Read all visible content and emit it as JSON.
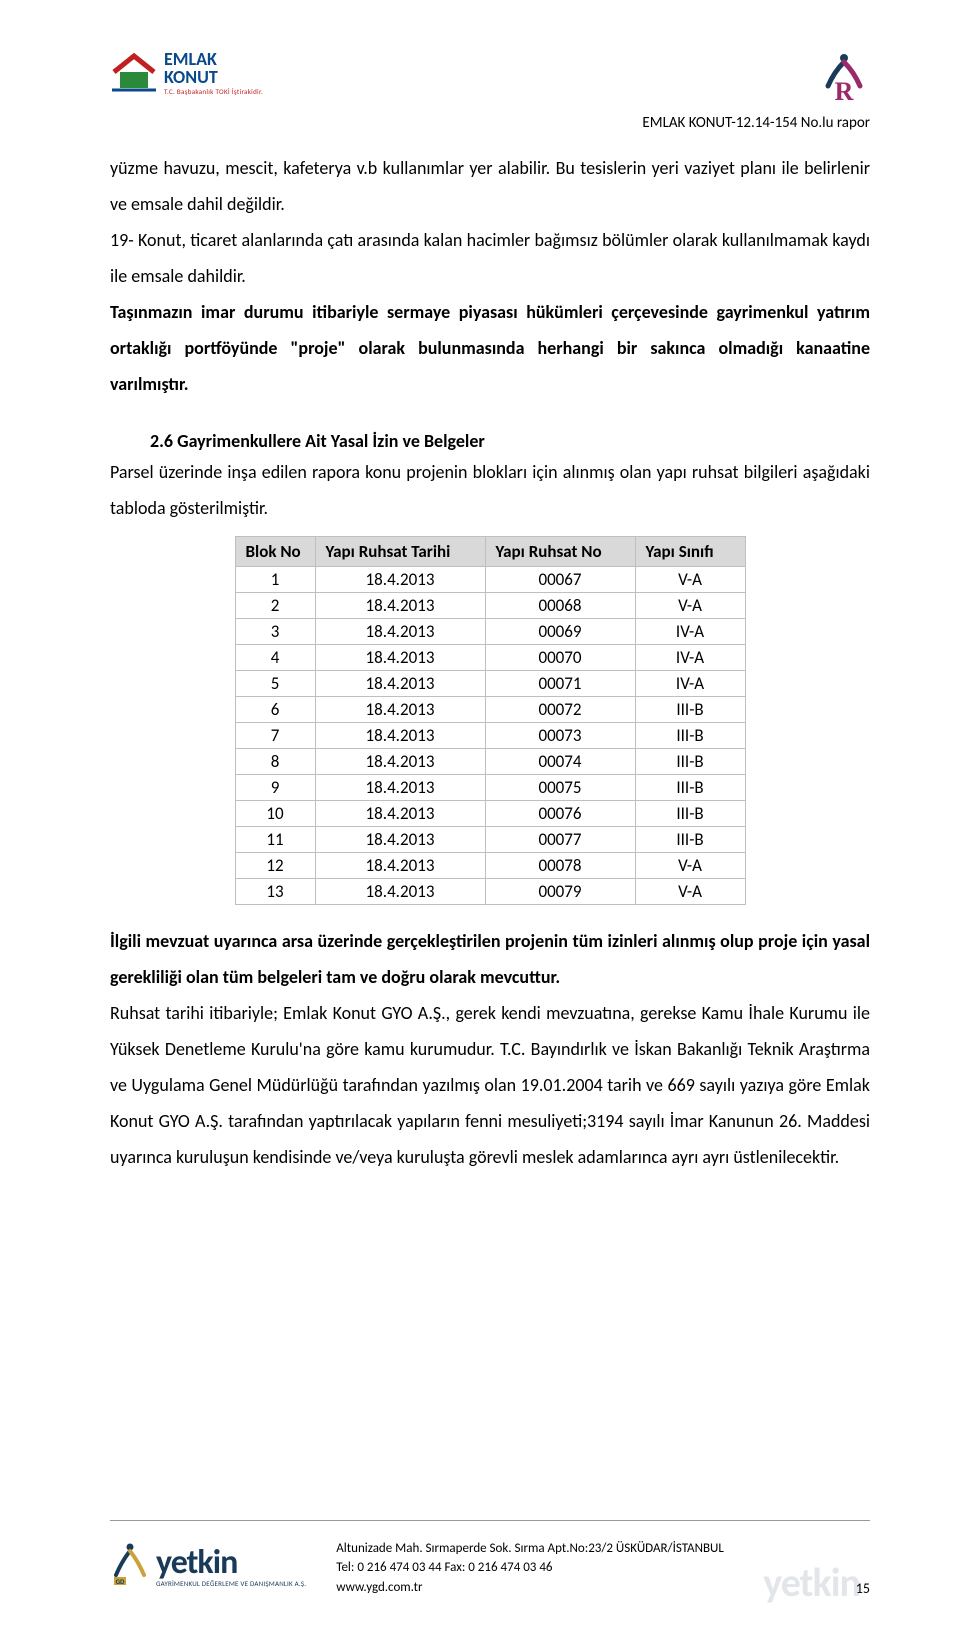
{
  "header": {
    "logo_left": {
      "line1": "EMLAK",
      "line2": "KONUT",
      "sub": "T.C. Başbakanlık TOKİ İştirakidir."
    },
    "report_label": "EMLAK KONUT-12.14-154 No.lu rapor"
  },
  "paragraphs": {
    "p1": "yüzme havuzu, mescit, kafeterya v.b kullanımlar yer alabilir. Bu tesislerin yeri vaziyet planı ile belirlenir ve emsale dahil değildir.",
    "p2": "19- Konut, ticaret alanlarında çatı arasında kalan hacimler bağımsız bölümler olarak kullanılmamak kaydı ile emsale dahildir.",
    "p3": "Taşınmazın imar durumu itibariyle sermaye piyasası hükümleri çerçevesinde gayrimenkul yatırım ortaklığı portföyünde \"proje\" olarak bulunmasında herhangi bir sakınca olmadığı kanaatine varılmıştır.",
    "section_heading": "2.6 Gayrimenkullere Ait Yasal İzin ve Belgeler",
    "p4": "Parsel üzerinde inşa edilen rapora konu projenin blokları için alınmış olan yapı ruhsat bilgileri aşağıdaki tabloda gösterilmiştir.",
    "p5": "İlgili mevzuat uyarınca arsa üzerinde gerçekleştirilen projenin tüm izinleri alınmış olup proje için yasal gerekliliği olan tüm belgeleri tam ve doğru olarak mevcuttur.",
    "p6": "Ruhsat tarihi itibariyle; Emlak Konut GYO A.Ş., gerek kendi mevzuatına, gerekse Kamu İhale Kurumu ile Yüksek Denetleme Kurulu'na göre kamu kurumudur. T.C. Bayındırlık ve İskan Bakanlığı Teknik Araştırma ve Uygulama Genel Müdürlüğü tarafından yazılmış olan 19.01.2004 tarih ve 669 sayılı yazıya göre Emlak Konut GYO A.Ş. tarafından yaptırılacak yapıların fenni mesuliyeti;3194 sayılı İmar Kanunun 26. Maddesi uyarınca kuruluşun kendisinde ve/veya kuruluşta görevli meslek adamlarınca ayrı ayrı üstlenilecektir."
  },
  "table": {
    "columns": [
      "Blok No",
      "Yapı Ruhsat Tarihi",
      "Yapı Ruhsat No",
      "Yapı Sınıfı"
    ],
    "rows": [
      [
        "1",
        "18.4.2013",
        "00067",
        "V-A"
      ],
      [
        "2",
        "18.4.2013",
        "00068",
        "V-A"
      ],
      [
        "3",
        "18.4.2013",
        "00069",
        "IV-A"
      ],
      [
        "4",
        "18.4.2013",
        "00070",
        "IV-A"
      ],
      [
        "5",
        "18.4.2013",
        "00071",
        "IV-A"
      ],
      [
        "6",
        "18.4.2013",
        "00072",
        "III-B"
      ],
      [
        "7",
        "18.4.2013",
        "00073",
        "III-B"
      ],
      [
        "8",
        "18.4.2013",
        "00074",
        "III-B"
      ],
      [
        "9",
        "18.4.2013",
        "00075",
        "III-B"
      ],
      [
        "10",
        "18.4.2013",
        "00076",
        "III-B"
      ],
      [
        "11",
        "18.4.2013",
        "00077",
        "III-B"
      ],
      [
        "12",
        "18.4.2013",
        "00078",
        "V-A"
      ],
      [
        "13",
        "18.4.2013",
        "00079",
        "V-A"
      ]
    ],
    "header_bg": "#d9d9d9",
    "border_color": "#bfbfbf"
  },
  "footer": {
    "logo_text": "yetkin",
    "logo_sub": "GAYRİMENKUL DEĞERLEME VE DANIŞMANLIK A.Ş.",
    "address": "Altunizade Mah. Sırmaperde Sok. Sırma Apt.No:23/2 ÜSKÜDAR/İSTANBUL",
    "tel": "Tel: 0 216 474 03 44 Fax: 0 216 474 03 46",
    "web": "www.ygd.com.tr",
    "page_number": "15"
  },
  "colors": {
    "text": "#000000",
    "brand_blue": "#0a4a8a",
    "brand_red": "#c02020",
    "brand_green": "#2a8a3a",
    "footer_blue": "#1a3a5a",
    "magenta": "#9a2a6a"
  }
}
